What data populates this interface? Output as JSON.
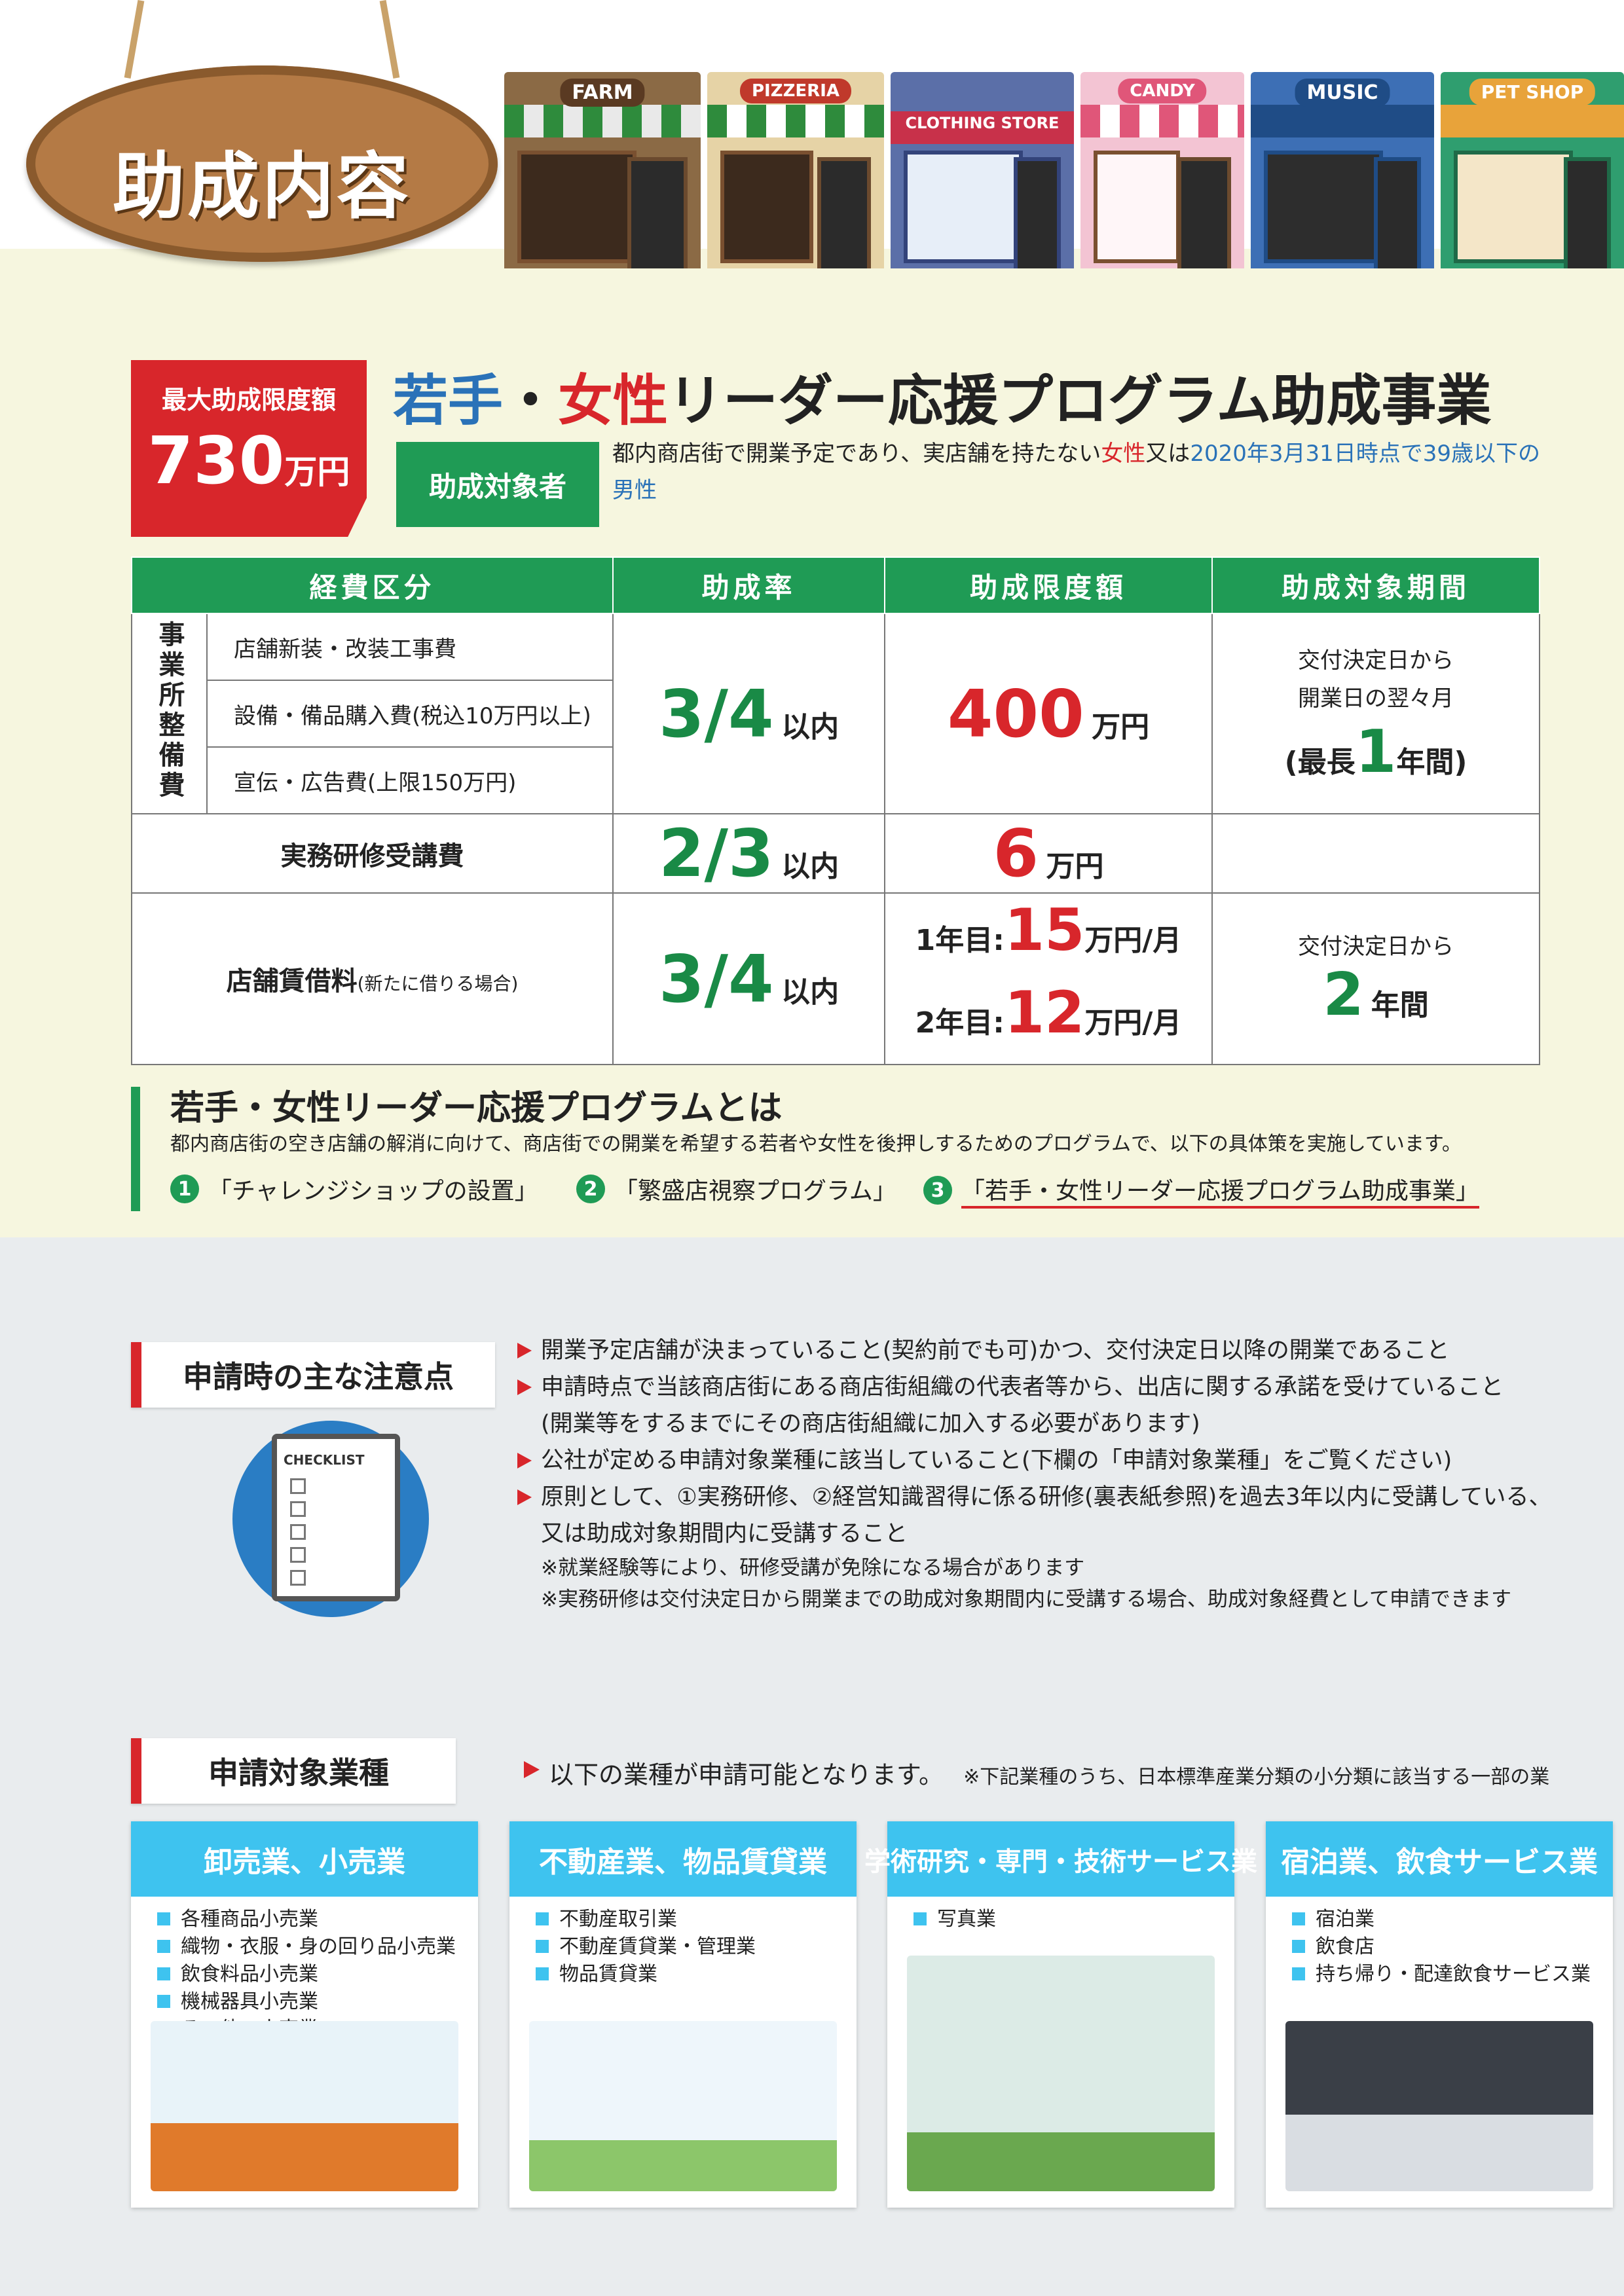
{
  "header": {
    "sign_title": "助成内容",
    "shops": [
      "FARM",
      "PIZZERIA",
      "CLOTHING STORE",
      "CANDY",
      "MUSIC",
      "PET SHOP"
    ]
  },
  "badge": {
    "label": "最大助成限度額",
    "amount": "730",
    "unit": "万円"
  },
  "program": {
    "title_part1": "若手",
    "title_dot": "・",
    "title_part2": "女性",
    "title_part3": "リーダー応援プログラム助成事業",
    "target_label": "助成対象者",
    "target_desc_a": "都内商店街で開業予定であり、実店舗を持たない",
    "target_desc_b": "女性",
    "target_desc_c": "又は",
    "target_desc_d": "2020年3月31日時点で39歳以下の男性"
  },
  "table": {
    "headers": [
      "経費区分",
      "助成率",
      "助成限度額",
      "助成対象期間"
    ],
    "group_label": "事業所整備費",
    "sub_items": [
      "店舗新装・改装工事費",
      "設備・備品購入費(税込10万円以上)",
      "宣伝・広告費(上限150万円)"
    ],
    "row1": {
      "rate": "3/4",
      "rate_suffix": "以内",
      "limit": "400",
      "limit_unit": "万円",
      "period_line1": "交付決定日から",
      "period_line2": "開業日の翌々月",
      "period_pre": "(最長",
      "period_num": "1",
      "period_post": "年間)"
    },
    "row2": {
      "label": "実務研修受講費",
      "rate": "2/3",
      "rate_suffix": "以内",
      "limit": "6",
      "limit_unit": "万円"
    },
    "row3": {
      "label": "店舗賃借料",
      "label_note": "(新たに借りる場合)",
      "rate": "3/4",
      "rate_suffix": "以内",
      "y1_label": "1年目:",
      "y1_value": "15",
      "y1_unit": "万円/月",
      "y2_label": "2年目:",
      "y2_value": "12",
      "y2_unit": "万円/月",
      "period_line1": "交付決定日から",
      "period_num": "2",
      "period_post": "年間"
    }
  },
  "about": {
    "title": "若手・女性リーダー応援プログラムとは",
    "desc": "都内商店街の空き店舗の解消に向けて、商店街での開業を希望する若者や女性を後押しするためのプログラムで、以下の具体策を実施しています。",
    "steps": [
      {
        "num": "1",
        "text": "「チャレンジショップの設置」"
      },
      {
        "num": "2",
        "text": "「繁盛店視察プログラム」"
      },
      {
        "num": "3",
        "text": "「若手・女性リーダー応援プログラム助成事業」"
      }
    ]
  },
  "notes": {
    "heading": "申請時の主な注意点",
    "checklist_label": "CHECKLIST",
    "items": [
      "開業予定店舗が決まっていること(契約前でも可)かつ、交付決定日以降の開業であること",
      "申請時点で当該商店街にある商店街組織の代表者等から、出店に関する承諾を受けていること",
      "(開業等をするまでにその商店街組織に加入する必要があります)",
      "公社が定める申請対象業種に該当していること(下欄の「申請対象業種」をご覧ください)",
      "原則として、①実務研修、②経営知識習得に係る研修(裏表紙参照)を過去3年以内に受講している、",
      "又は助成対象期間内に受講すること"
    ],
    "footnotes": [
      "※就業経験等により、研修受講が免除になる場合があります",
      "※実務研修は交付決定日から開業までの助成対象期間内に受講する場合、助成対象経費として申請できます"
    ]
  },
  "industries": {
    "heading": "申請対象業種",
    "lead": "以下の業種が申請可能となります。",
    "lead_note": "※下記業種のうち、日本標準産業分類の小分類に該当する一部の業",
    "cards": [
      {
        "title": "卸売業、小売業",
        "items": [
          "各種商品小売業",
          "織物・衣服・身の回り品小売業",
          "飲食料品小売業",
          "機械器具小売業",
          "その他の小売業"
        ]
      },
      {
        "title": "不動産業、物品賃貸業",
        "items": [
          "不動産取引業",
          "不動産賃貸業・管理業",
          "物品賃貸業"
        ]
      },
      {
        "title": "学術研究・専門・技術サービス業",
        "items": [
          "写真業"
        ]
      },
      {
        "title": "宿泊業、飲食サービス業",
        "items": [
          "宿泊業",
          "飲食店",
          "持ち帰り・配達飲食サービス業"
        ]
      }
    ]
  },
  "colors": {
    "green": "#1f9b55",
    "red": "#d8262b",
    "blue": "#2a72b8",
    "cyan": "#3ec3ef",
    "wood": "#b47a45"
  }
}
